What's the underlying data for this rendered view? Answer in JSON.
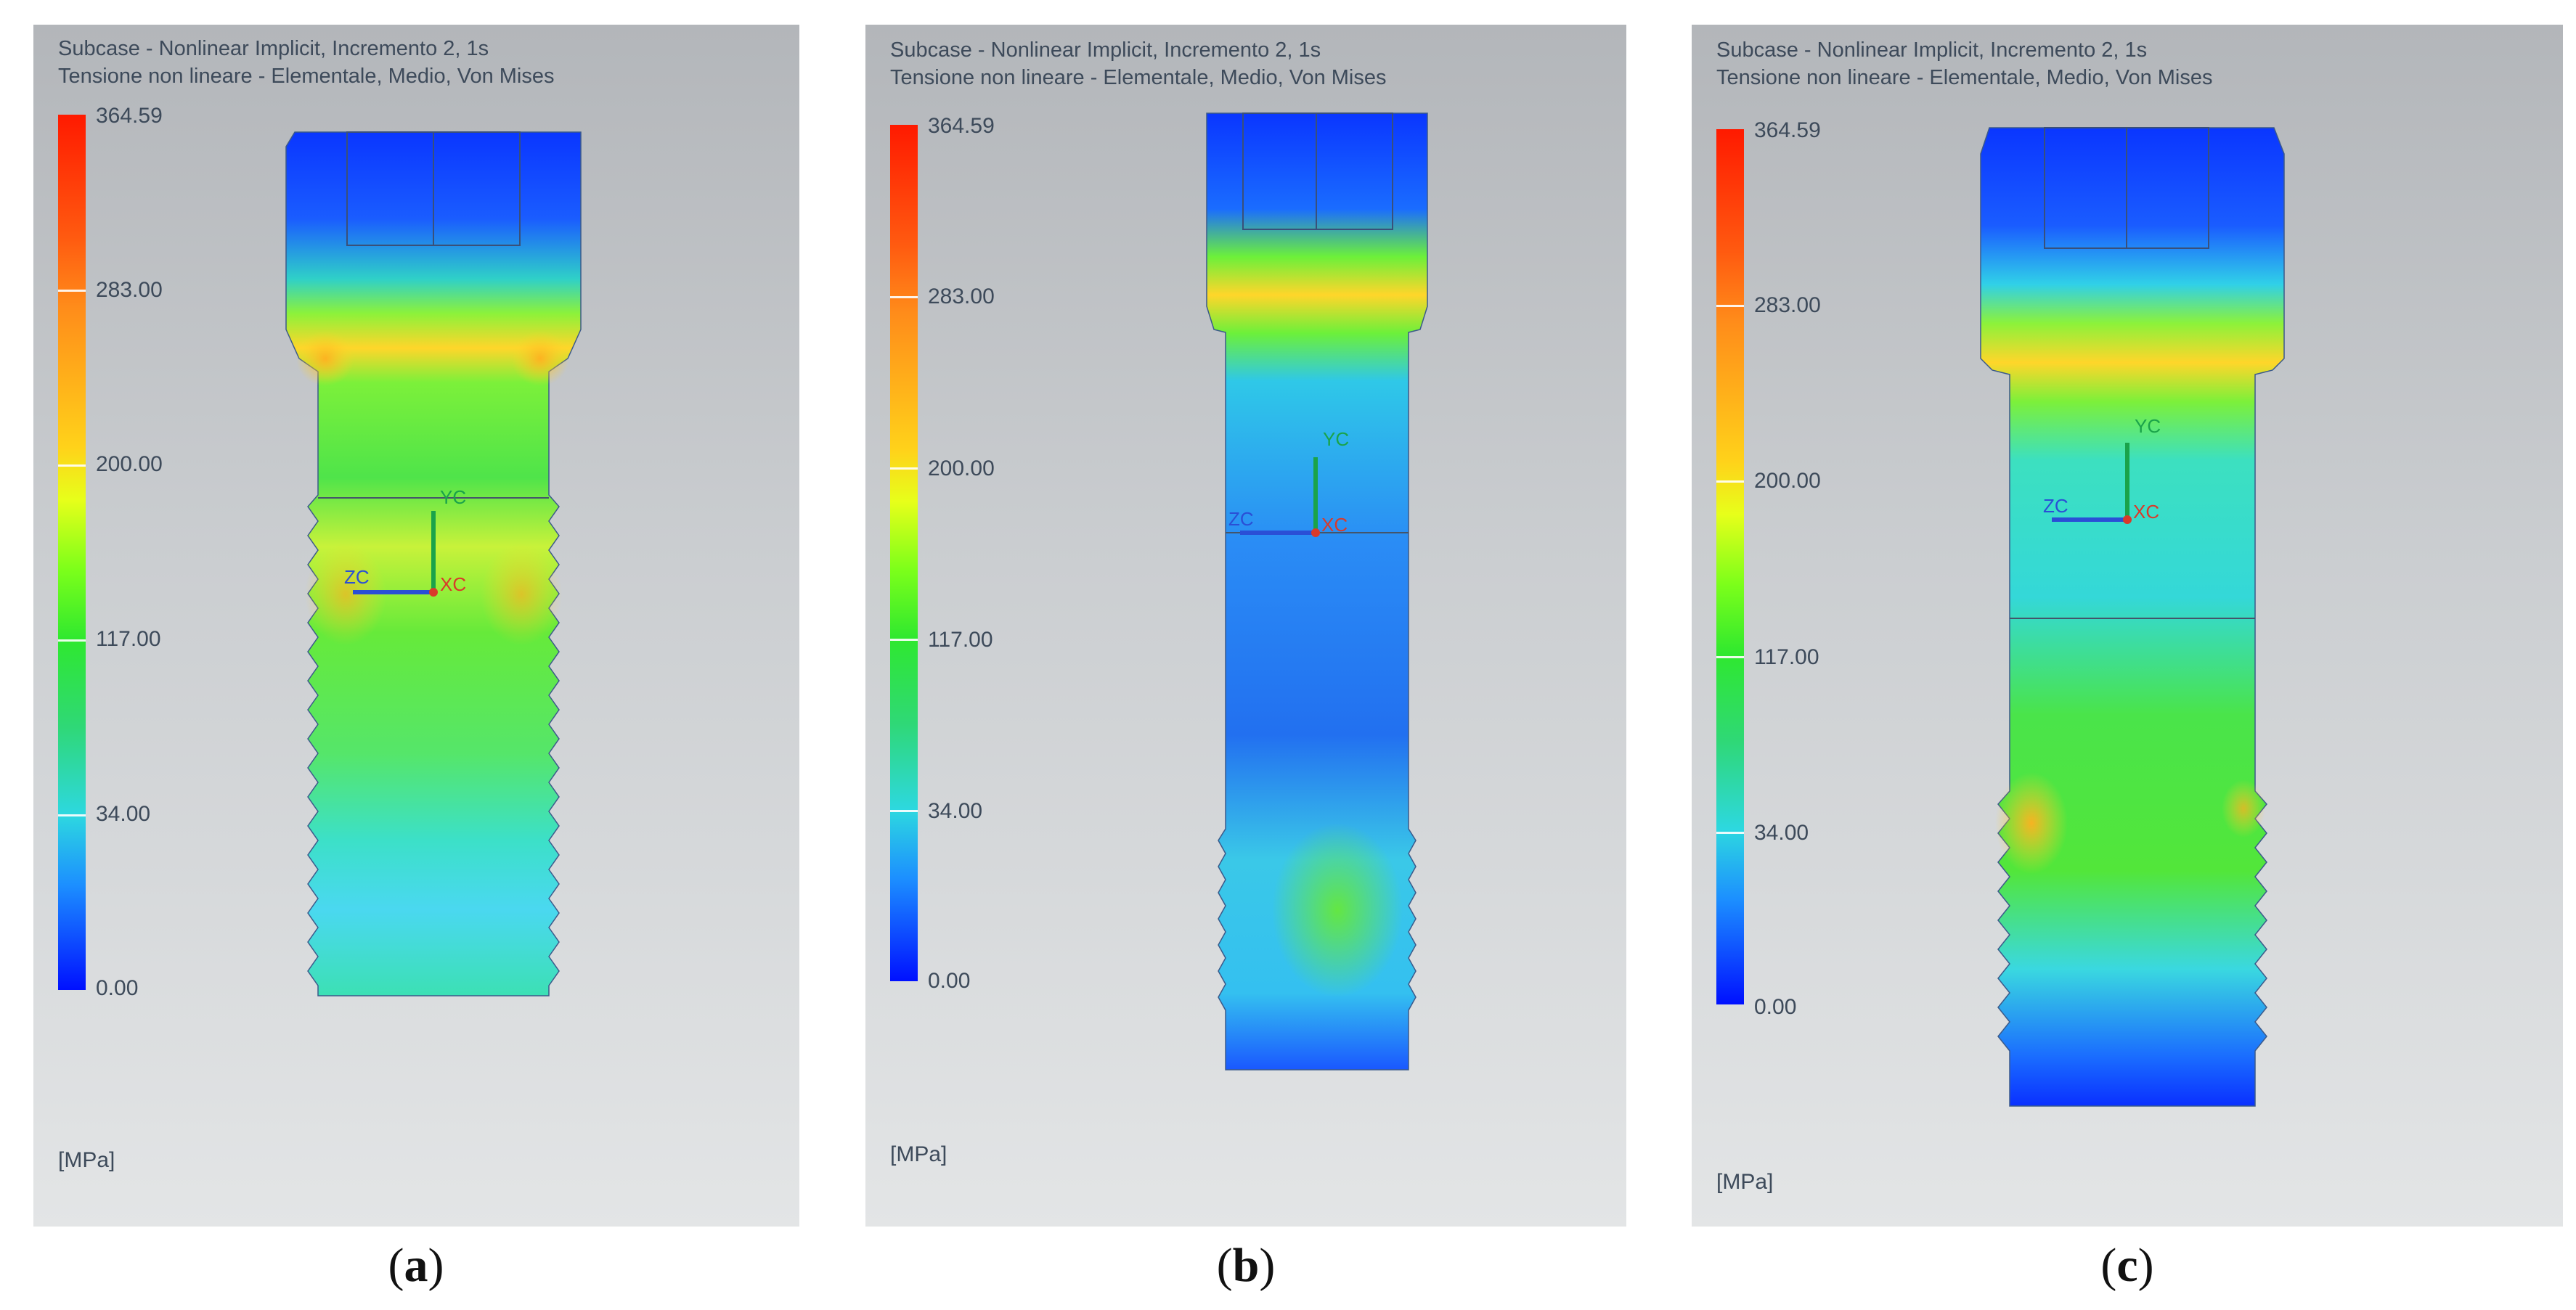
{
  "panels": [
    {
      "id": "a",
      "header_line1": "Subcase - Nonlinear Implicit, Incremento 2, 1s",
      "header_line2": "Tensione non lineare - Elementale, Medio, Von Mises",
      "ticks": [
        "364.59",
        "283.00",
        "200.00",
        "117.00",
        "34.00",
        "0.00"
      ],
      "unit": "[MPa]",
      "axis_labels": {
        "y": "YC",
        "z": "ZC",
        "x": "XC"
      },
      "caption_letter": "a"
    },
    {
      "id": "b",
      "header_line1": "Subcase - Nonlinear Implicit, Incremento 2, 1s",
      "header_line2": "Tensione non lineare - Elementale, Medio, Von Mises",
      "ticks": [
        "364.59",
        "283.00",
        "200.00",
        "117.00",
        "34.00",
        "0.00"
      ],
      "unit": "[MPa]",
      "axis_labels": {
        "y": "YC",
        "z": "ZC",
        "x": "XC"
      },
      "caption_letter": "b"
    },
    {
      "id": "c",
      "header_line1": "Subcase - Nonlinear Implicit, Incremento 2, 1s",
      "header_line2": "Tensione non lineare - Elementale, Medio, Von Mises",
      "ticks": [
        "364.59",
        "283.00",
        "200.00",
        "117.00",
        "34.00",
        "0.00"
      ],
      "unit": "[MPa]",
      "axis_labels": {
        "y": "YC",
        "z": "ZC",
        "x": "XC"
      },
      "caption_letter": "c"
    }
  ],
  "caption_open": "(",
  "caption_close": ")"
}
